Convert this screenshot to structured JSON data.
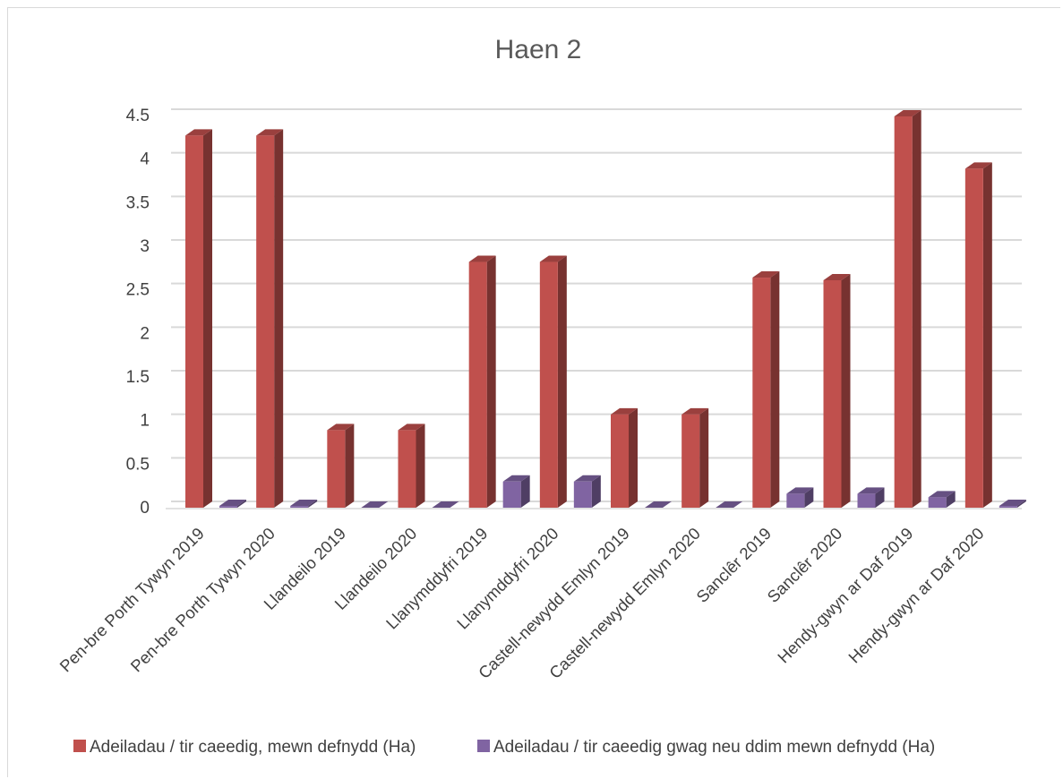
{
  "chart_data": {
    "type": "bar",
    "title": "Haen 2",
    "categories": [
      "Pen-bre Porth Tywyn 2019",
      "Pen-bre Porth Tywyn 2020",
      "Llandeilo 2019",
      "Llandeilo 2020",
      "Llanymddyfri 2019",
      "Llanymddyfri 2020",
      "Castell-newydd Emlyn 2019",
      "Castell-newydd Emlyn 2020",
      "Sanclêr  2019",
      "Sanclêr  2020",
      "Hendy-gwyn ar Daf  2019",
      "Hendy-gwyn ar Daf  2020"
    ],
    "series": [
      {
        "name": "Adeiladau / tir caeedig, mewn defnydd (Ha)",
        "color": "#c0504d",
        "values": [
          4.27,
          4.27,
          0.89,
          0.89,
          2.82,
          2.82,
          1.07,
          1.07,
          2.64,
          2.61,
          4.49,
          3.89
        ]
      },
      {
        "name": "Adeiladau / tir caeedig gwag neu ddim mewn defnydd (Ha)",
        "color": "#8064a2",
        "values": [
          0.02,
          0.02,
          0.0,
          0.0,
          0.3,
          0.3,
          0.0,
          0.0,
          0.16,
          0.16,
          0.12,
          0.02
        ]
      }
    ],
    "yticks": [
      "0",
      "0.5",
      "1",
      "1.5",
      "2",
      "2.5",
      "3",
      "3.5",
      "4",
      "4.5"
    ],
    "ylim": [
      0,
      4.5
    ],
    "xlabel": "",
    "ylabel": "",
    "grid": true,
    "legend_position": "bottom"
  }
}
